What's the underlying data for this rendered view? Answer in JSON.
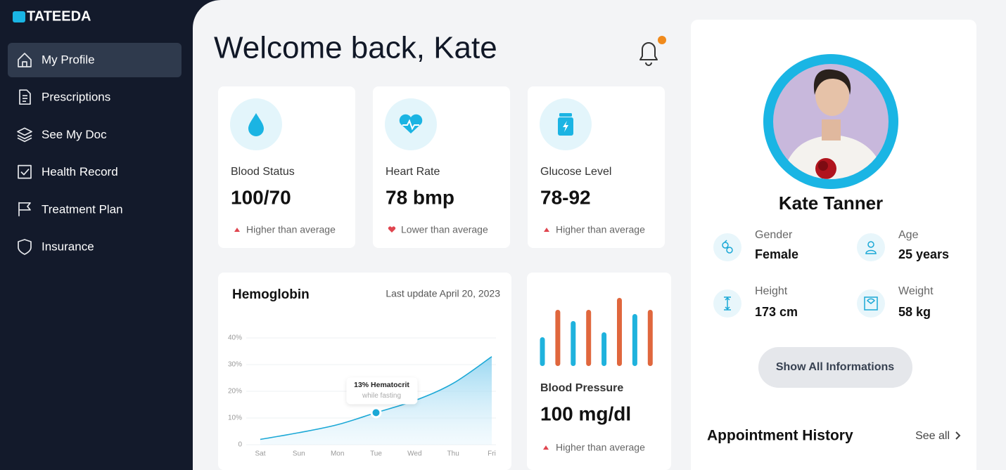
{
  "brand": "TATEEDA",
  "nav": [
    {
      "label": "My Profile",
      "active": true
    },
    {
      "label": "Prescriptions",
      "active": false
    },
    {
      "label": "See My Doc",
      "active": false
    },
    {
      "label": "Health Record",
      "active": false
    },
    {
      "label": "Treatment Plan",
      "active": false
    },
    {
      "label": "Insurance",
      "active": false
    }
  ],
  "header": {
    "title": "Welcome back, Kate"
  },
  "stats": [
    {
      "label": "Blood Status",
      "value": "100/70",
      "trend": "Higher than average",
      "direction": "up"
    },
    {
      "label": "Heart Rate",
      "value": "78 bmp",
      "trend": "Lower than average",
      "direction": "down"
    },
    {
      "label": "Glucose Level",
      "value": "78-92",
      "trend": "Higher than average",
      "direction": "up"
    }
  ],
  "chart_data": [
    {
      "type": "area",
      "title": "Hemoglobin",
      "subtitle": "Last update April 20, 2023",
      "categories": [
        "Sat",
        "Sun",
        "Mon",
        "Tue",
        "Wed",
        "Thu",
        "Fri"
      ],
      "values": [
        2,
        4.5,
        7.5,
        12,
        16.5,
        23,
        33
      ],
      "color": "#1ba8d6",
      "ylim": [
        0,
        40
      ],
      "yticks": [
        0,
        {
          "value": 10,
          "label": "10%"
        },
        {
          "value": 20,
          "label": "20%"
        },
        {
          "value": 30,
          "label": "30%"
        },
        {
          "value": 40,
          "label": "40%"
        }
      ],
      "grid": true,
      "annotation": {
        "text": "13% Hematocrit",
        "subtext": "while fasting",
        "index": 3
      }
    },
    {
      "type": "bar",
      "title": "Blood Pressure",
      "reading": "100 mg/dl",
      "trend": "Higher than average",
      "direction": "up",
      "values": [
        41,
        80,
        64,
        80,
        48,
        97,
        74,
        80
      ],
      "colors": [
        "#1fb2dd",
        "#e0673d"
      ],
      "ylim": [
        0,
        100
      ]
    }
  ],
  "profile": {
    "name": "Kate Tanner",
    "details": [
      {
        "label": "Gender",
        "value": "Female"
      },
      {
        "label": "Age",
        "value": "25 years"
      },
      {
        "label": "Height",
        "value": "173 cm"
      },
      {
        "label": "Weight",
        "value": "58 kg"
      }
    ],
    "button": "Show All Informations"
  },
  "appointments": {
    "title": "Appointment History",
    "link": "See all"
  }
}
